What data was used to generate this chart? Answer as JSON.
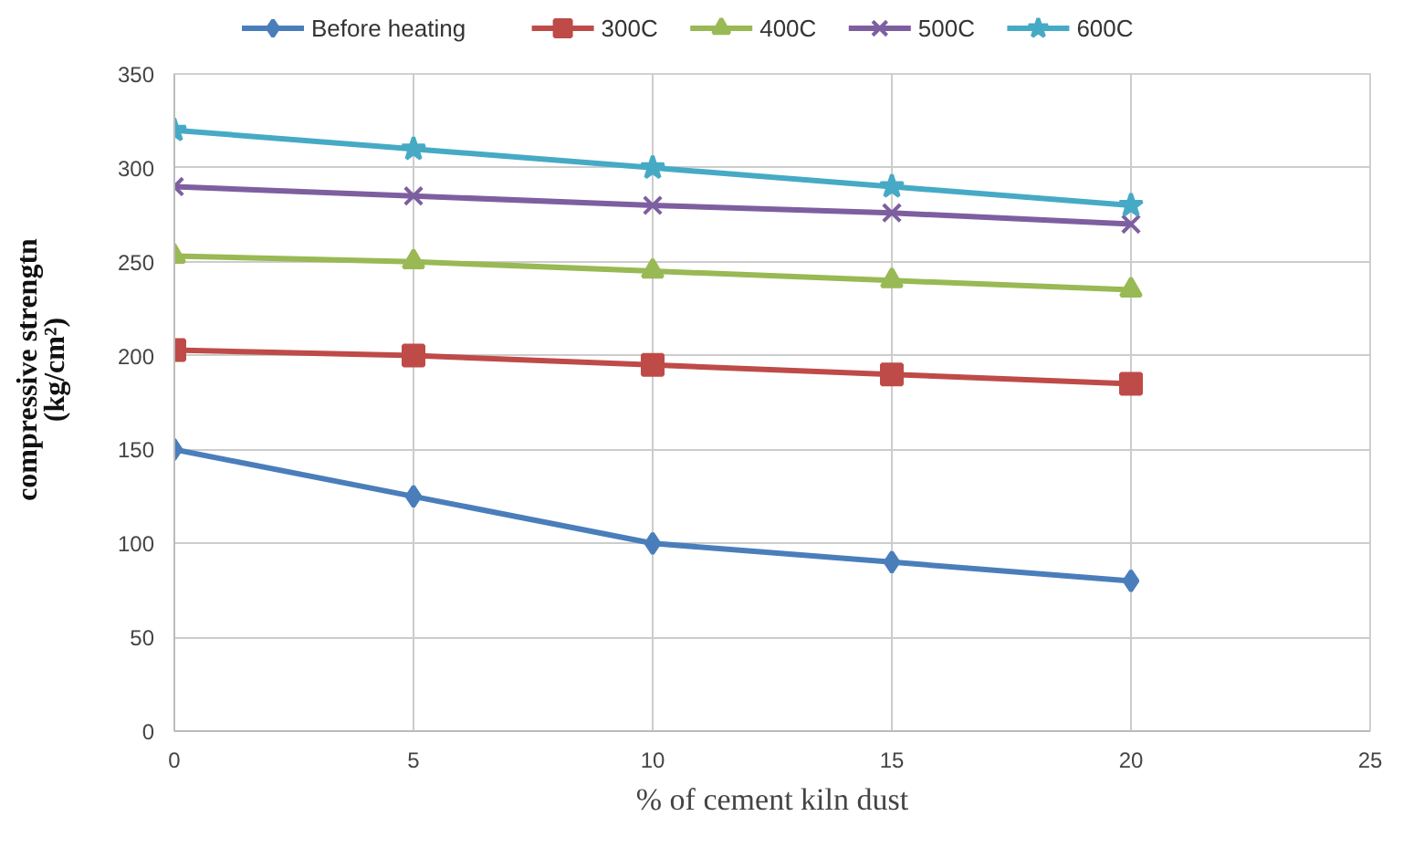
{
  "chart_data": {
    "type": "line",
    "xlabel": "% of cement kiln dust",
    "ylabel": "compressive strengtn\n(kg/cm²)",
    "x": [
      0,
      5,
      10,
      15,
      20
    ],
    "series": [
      {
        "name": "Before heating",
        "color": "#4a7ebb",
        "marker": "diamond",
        "values": [
          150,
          125,
          100,
          90,
          80
        ]
      },
      {
        "name": "300C",
        "color": "#be4b48",
        "marker": "square",
        "values": [
          203,
          200,
          195,
          190,
          185
        ]
      },
      {
        "name": "400C",
        "color": "#98b954",
        "marker": "triangle",
        "values": [
          253,
          250,
          245,
          240,
          235
        ]
      },
      {
        "name": "500C",
        "color": "#7d5fa0",
        "marker": "cross",
        "values": [
          290,
          285,
          280,
          276,
          270
        ]
      },
      {
        "name": "600C",
        "color": "#46aac5",
        "marker": "star",
        "values": [
          320,
          310,
          300,
          290,
          280
        ]
      }
    ],
    "xlim": [
      0,
      25
    ],
    "xticks": [
      0,
      5,
      10,
      15,
      20,
      25
    ],
    "ylim": [
      0,
      350
    ],
    "yticks": [
      0,
      50,
      100,
      150,
      200,
      250,
      300,
      350
    ],
    "grid": true,
    "legend": "top",
    "line_style": "solid"
  }
}
